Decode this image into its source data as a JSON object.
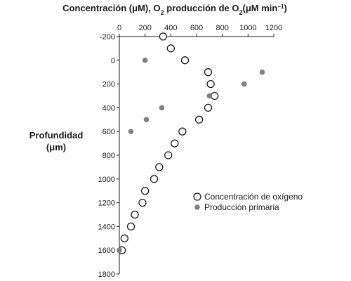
{
  "chart_data": {
    "type": "scatter",
    "title_parts": {
      "t1": "Concentración (μM), O",
      "s1": "2",
      "t2": " producción de O",
      "s2": "2",
      "t3": "(μM min",
      "sup": "−1",
      "t4": ")"
    },
    "ylabel_line1": "Profundidad",
    "ylabel_line2": "(μm)",
    "xlim": [
      0,
      1200
    ],
    "ylim": [
      -200,
      1800
    ],
    "y_inverted": true,
    "x_axis_position": "top",
    "xticks": [
      "0",
      "200",
      "400",
      "600",
      "800",
      "1000",
      "1200"
    ],
    "yticks": [
      "-200",
      "0",
      "200",
      "400",
      "600",
      "800",
      "1000",
      "1200",
      "1400",
      "1600",
      "1800"
    ],
    "grid": false,
    "legend_position": "bottom-right",
    "series": [
      {
        "name": "Concentración de oxígeno",
        "marker": "open-circle",
        "color": "#1a1a1a",
        "points": [
          [
            340,
            -200
          ],
          [
            400,
            -100
          ],
          [
            510,
            0
          ],
          [
            690,
            100
          ],
          [
            710,
            200
          ],
          [
            740,
            300
          ],
          [
            690,
            400
          ],
          [
            620,
            500
          ],
          [
            490,
            600
          ],
          [
            430,
            700
          ],
          [
            380,
            800
          ],
          [
            310,
            900
          ],
          [
            270,
            1000
          ],
          [
            200,
            1100
          ],
          [
            180,
            1200
          ],
          [
            120,
            1300
          ],
          [
            90,
            1400
          ],
          [
            40,
            1500
          ],
          [
            20,
            1600
          ]
        ]
      },
      {
        "name": "Producción primaria",
        "marker": "filled-circle",
        "color": "#808080",
        "points": [
          [
            200,
            0
          ],
          [
            1110,
            100
          ],
          [
            970,
            200
          ],
          [
            700,
            300
          ],
          [
            330,
            400
          ],
          [
            210,
            500
          ],
          [
            90,
            600
          ],
          [
            0,
            1600
          ]
        ]
      }
    ]
  }
}
